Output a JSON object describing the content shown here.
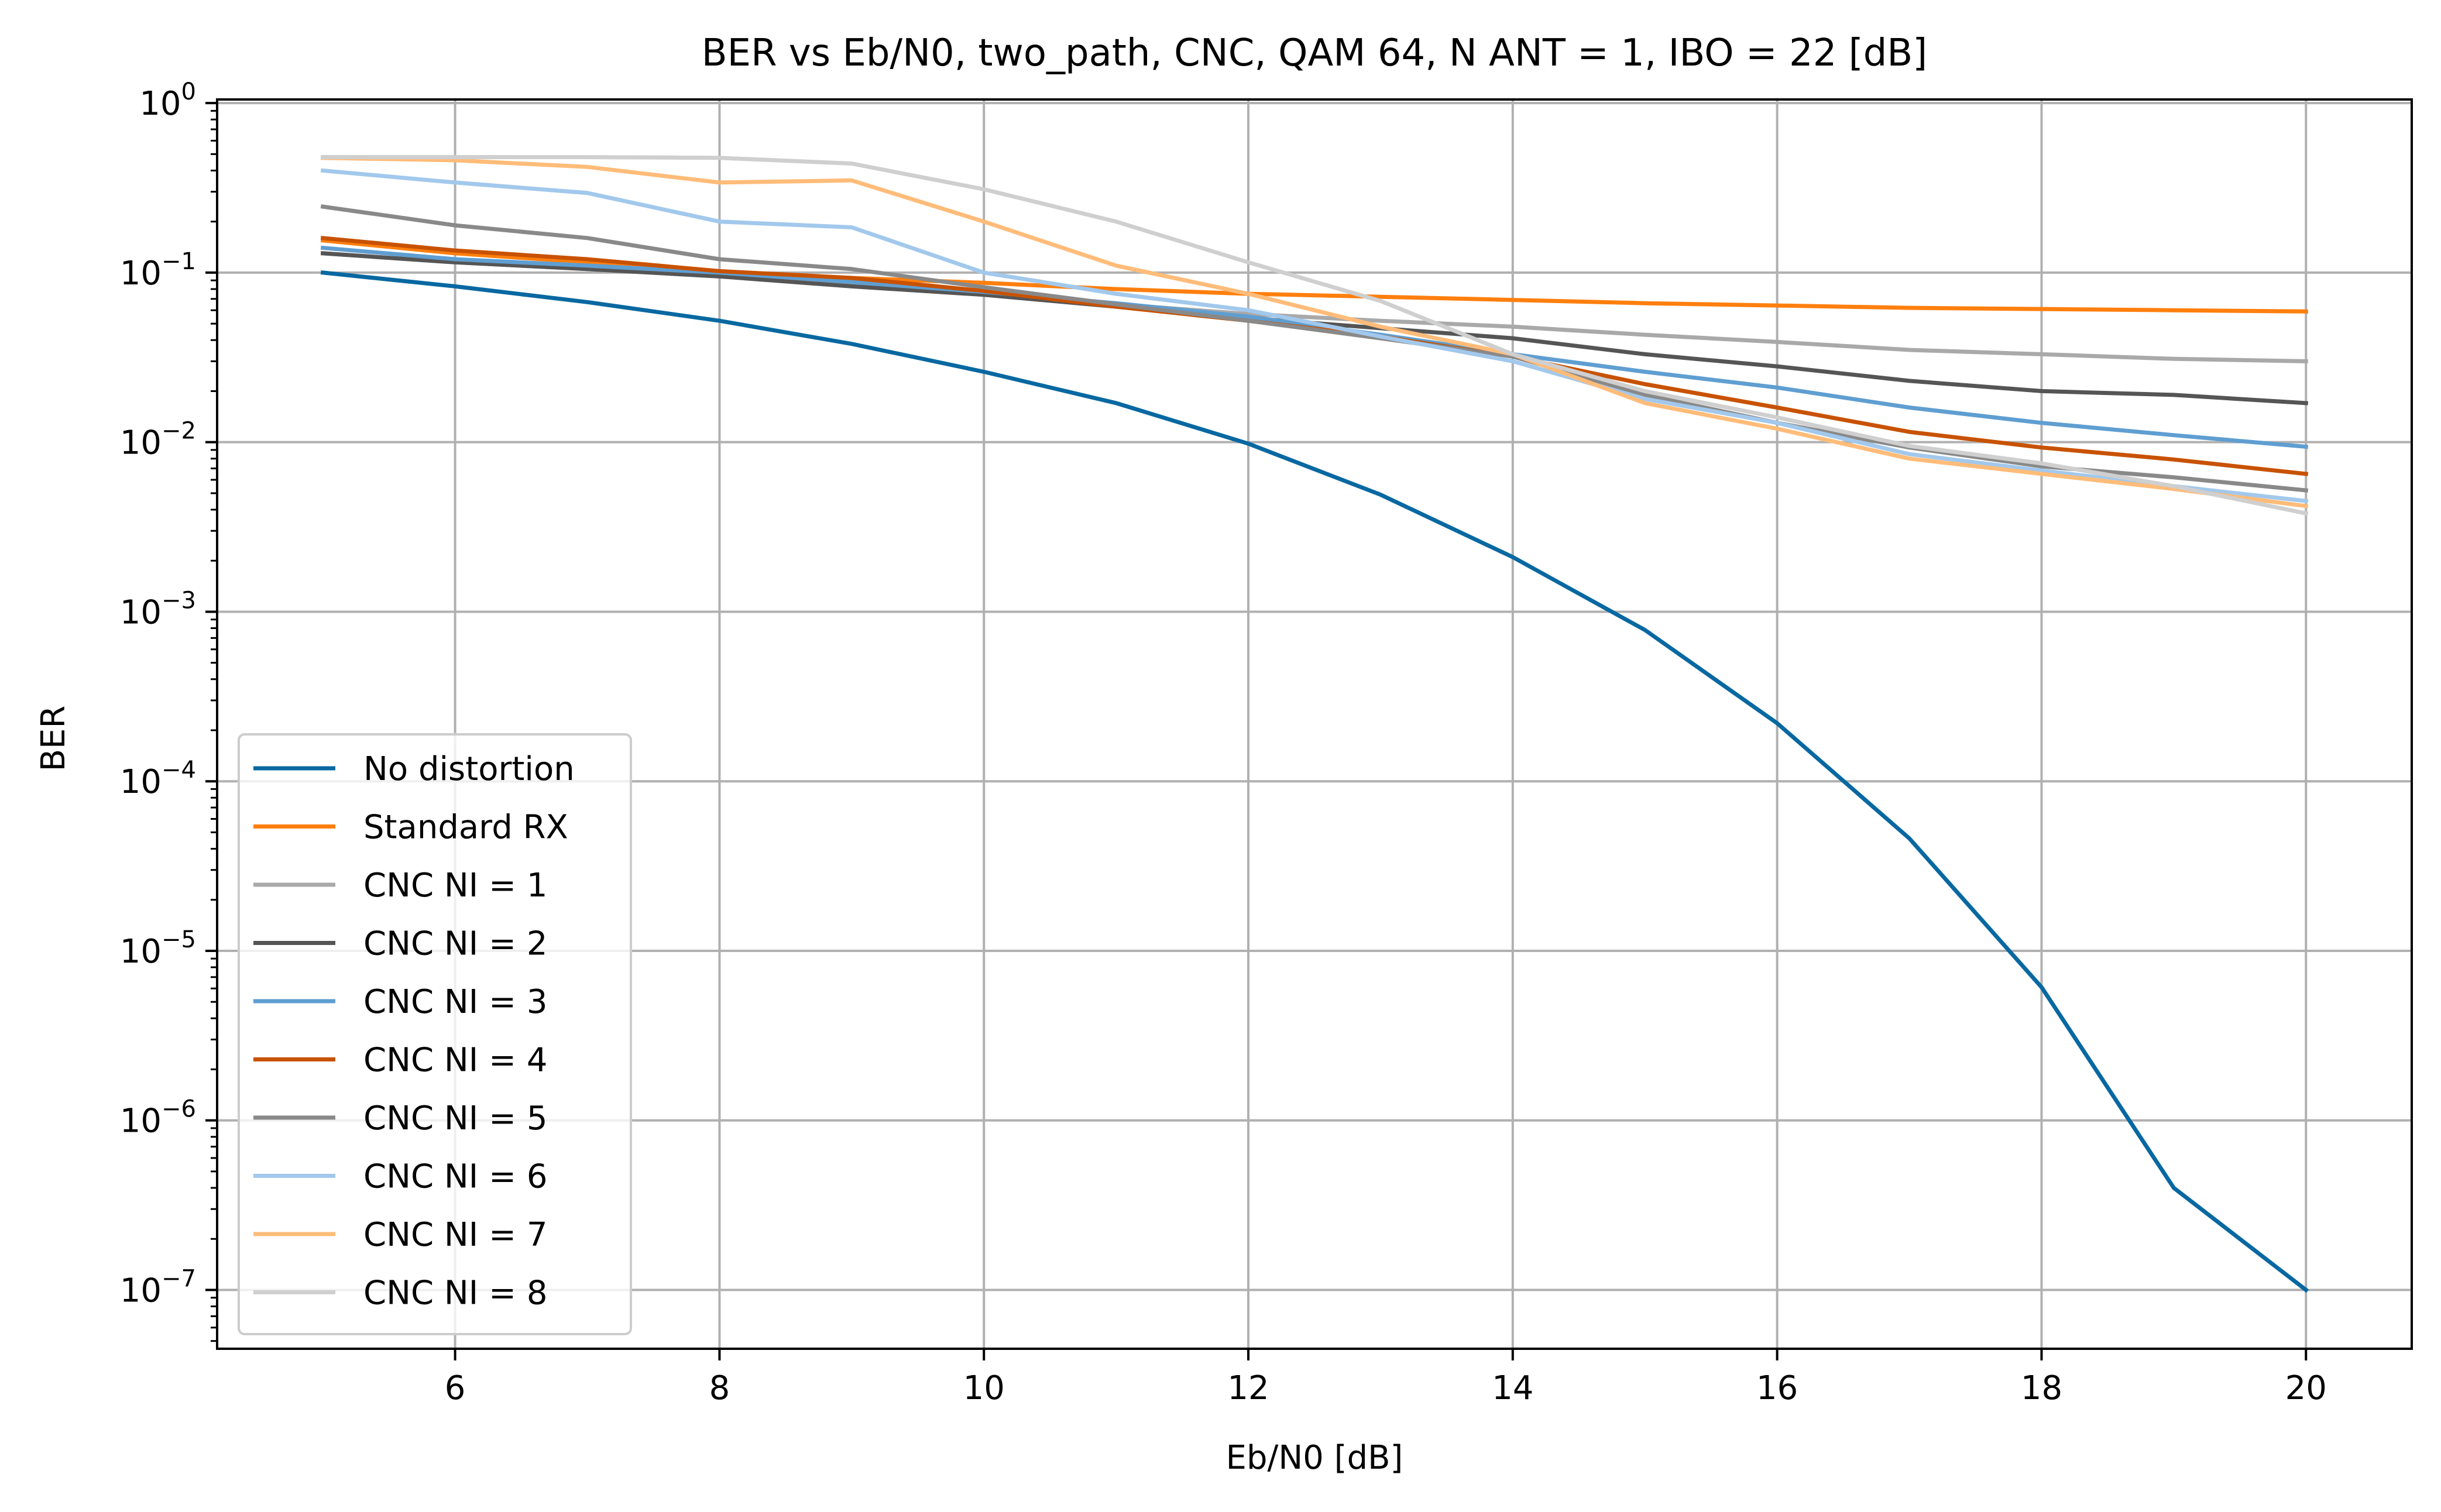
{
  "chart_data": {
    "type": "line",
    "title": "BER vs Eb/N0, two_path, CNC, QAM 64, N ANT = 1, IBO = 22 [dB]",
    "xlabel": "Eb/N0 [dB]",
    "ylabel": "BER",
    "yscale": "log",
    "xlim": [
      4.2,
      20.8
    ],
    "ylim": [
      4.5e-08,
      1.05
    ],
    "grid": true,
    "legend_position": "lower-left",
    "x_ticks": [
      6,
      8,
      10,
      12,
      14,
      16,
      18,
      20
    ],
    "x_tick_labels": [
      "6",
      "8",
      "10",
      "12",
      "14",
      "16",
      "18",
      "20"
    ],
    "y_ticks": [
      1e-07,
      1e-06,
      1e-05,
      0.0001,
      0.001,
      0.01,
      0.1,
      1
    ],
    "y_tick_labels": [
      {
        "base": "10",
        "exp": "−7"
      },
      {
        "base": "10",
        "exp": "−6"
      },
      {
        "base": "10",
        "exp": "−5"
      },
      {
        "base": "10",
        "exp": "−4"
      },
      {
        "base": "10",
        "exp": "−3"
      },
      {
        "base": "10",
        "exp": "−2"
      },
      {
        "base": "10",
        "exp": "−1"
      },
      {
        "base": "10",
        "exp": "0"
      }
    ],
    "series": [
      {
        "name": "No distortion",
        "color": "#0868a1",
        "x": [
          5,
          6,
          7,
          8,
          9,
          10,
          11,
          12,
          13,
          14,
          15,
          16,
          17,
          18,
          19,
          20
        ],
        "y": [
          0.1,
          0.083,
          0.067,
          0.052,
          0.038,
          0.026,
          0.017,
          0.0098,
          0.0049,
          0.0021,
          0.00078,
          0.00022,
          4.6e-05,
          6.1e-06,
          4e-07,
          1e-07
        ]
      },
      {
        "name": "Standard RX",
        "color": "#ff7f0e",
        "x": [
          5,
          6,
          7,
          8,
          9,
          10,
          11,
          12,
          13,
          14,
          15,
          16,
          17,
          18,
          19,
          20
        ],
        "y": [
          0.155,
          0.13,
          0.115,
          0.1,
          0.093,
          0.087,
          0.08,
          0.075,
          0.072,
          0.069,
          0.066,
          0.064,
          0.062,
          0.061,
          0.06,
          0.059
        ]
      },
      {
        "name": "CNC NI = 1",
        "color": "#a9a9a9",
        "x": [
          5,
          6,
          7,
          8,
          9,
          10,
          11,
          12,
          13,
          14,
          15,
          16,
          17,
          18,
          19,
          20
        ],
        "y": [
          0.13,
          0.115,
          0.105,
          0.095,
          0.085,
          0.075,
          0.065,
          0.057,
          0.052,
          0.048,
          0.043,
          0.039,
          0.035,
          0.033,
          0.031,
          0.03
        ]
      },
      {
        "name": "CNC NI = 2",
        "color": "#555555",
        "x": [
          5,
          6,
          7,
          8,
          9,
          10,
          11,
          12,
          13,
          14,
          15,
          16,
          17,
          18,
          19,
          20
        ],
        "y": [
          0.13,
          0.115,
          0.105,
          0.095,
          0.083,
          0.074,
          0.063,
          0.054,
          0.047,
          0.041,
          0.033,
          0.028,
          0.023,
          0.02,
          0.019,
          0.017
        ]
      },
      {
        "name": "CNC NI = 3",
        "color": "#5f9ed1",
        "x": [
          5,
          6,
          7,
          8,
          9,
          10,
          11,
          12,
          13,
          14,
          15,
          16,
          17,
          18,
          19,
          20
        ],
        "y": [
          0.14,
          0.12,
          0.11,
          0.1,
          0.088,
          0.077,
          0.066,
          0.055,
          0.043,
          0.033,
          0.026,
          0.021,
          0.016,
          0.013,
          0.011,
          0.0094
        ]
      },
      {
        "name": "CNC NI = 4",
        "color": "#c85200",
        "x": [
          5,
          6,
          7,
          8,
          9,
          10,
          11,
          12,
          13,
          14,
          15,
          16,
          17,
          18,
          19,
          20
        ],
        "y": [
          0.16,
          0.135,
          0.12,
          0.102,
          0.093,
          0.078,
          0.063,
          0.052,
          0.042,
          0.032,
          0.022,
          0.016,
          0.0115,
          0.0093,
          0.0079,
          0.0065
        ]
      },
      {
        "name": "CNC NI = 5",
        "color": "#898989",
        "x": [
          5,
          6,
          7,
          8,
          9,
          10,
          11,
          12,
          13,
          14,
          15,
          16,
          17,
          18,
          19,
          20
        ],
        "y": [
          0.245,
          0.19,
          0.16,
          0.12,
          0.105,
          0.082,
          0.065,
          0.052,
          0.041,
          0.032,
          0.019,
          0.013,
          0.0093,
          0.0072,
          0.0062,
          0.0052
        ]
      },
      {
        "name": "CNC NI = 6",
        "color": "#a2c8ec",
        "x": [
          5,
          6,
          7,
          8,
          9,
          10,
          11,
          12,
          13,
          14,
          15,
          16,
          17,
          18,
          19,
          20
        ],
        "y": [
          0.4,
          0.34,
          0.295,
          0.2,
          0.185,
          0.1,
          0.075,
          0.06,
          0.042,
          0.03,
          0.018,
          0.013,
          0.0085,
          0.0068,
          0.0055,
          0.0045
        ]
      },
      {
        "name": "CNC NI = 7",
        "color": "#ffbc79",
        "x": [
          5,
          6,
          7,
          8,
          9,
          10,
          11,
          12,
          13,
          14,
          15,
          16,
          17,
          18,
          19,
          20
        ],
        "y": [
          0.475,
          0.46,
          0.42,
          0.34,
          0.35,
          0.2,
          0.11,
          0.075,
          0.048,
          0.033,
          0.017,
          0.012,
          0.008,
          0.0065,
          0.0053,
          0.0042
        ]
      },
      {
        "name": "CNC NI = 8",
        "color": "#cfcfcf",
        "x": [
          5,
          6,
          7,
          8,
          9,
          10,
          11,
          12,
          13,
          14,
          15,
          16,
          17,
          18,
          19,
          20
        ],
        "y": [
          0.48,
          0.48,
          0.48,
          0.475,
          0.44,
          0.31,
          0.2,
          0.115,
          0.068,
          0.033,
          0.02,
          0.014,
          0.0095,
          0.0075,
          0.0055,
          0.0038
        ]
      }
    ]
  }
}
